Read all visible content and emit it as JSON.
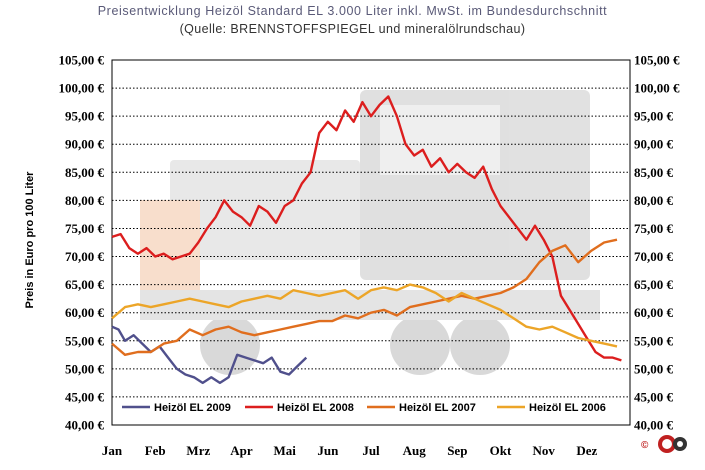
{
  "chart_data": {
    "type": "line",
    "title": "Preisentwicklung Heizöl Standard EL 3.000 Liter inkl. MwSt. im Bundesdurchschnitt",
    "subtitle": "(Quelle: BRENNSTOFFSPIEGEL und mineralölrundschau)",
    "ylabel": "Preis in Euro pro 100 Liter",
    "xlabel": "",
    "ylim": [
      40,
      105
    ],
    "yticks": [
      "40,00 €",
      "45,00 €",
      "50,00 €",
      "55,00 €",
      "60,00 €",
      "65,00 €",
      "70,00 €",
      "75,00 €",
      "80,00 €",
      "85,00 €",
      "90,00 €",
      "95,00 €",
      "100,00 €",
      "105,00 €"
    ],
    "xlim": [
      0,
      12
    ],
    "categories": [
      "Jan",
      "Feb",
      "Mrz",
      "Apr",
      "Mai",
      "Jun",
      "Jul",
      "Aug",
      "Sep",
      "Okt",
      "Nov",
      "Dez"
    ],
    "grid": true,
    "legend_position": "bottom",
    "series": [
      {
        "name": "Heizöl EL 2009",
        "color": "#50508c",
        "x": [
          0.0,
          0.15,
          0.3,
          0.5,
          0.7,
          0.9,
          1.1,
          1.3,
          1.5,
          1.7,
          1.9,
          2.1,
          2.3,
          2.5,
          2.7,
          2.9,
          3.1,
          3.3,
          3.5,
          3.7,
          3.9,
          4.1,
          4.3,
          4.5
        ],
        "values": [
          57.5,
          57.0,
          55.0,
          56.0,
          54.5,
          53.0,
          54.0,
          52.0,
          50.0,
          49.0,
          48.5,
          47.5,
          48.5,
          47.5,
          48.5,
          52.5,
          52.0,
          51.5,
          51.0,
          52.0,
          49.5,
          49.0,
          50.5,
          52.0
        ]
      },
      {
        "name": "Heizöl EL 2008",
        "color": "#dc1e1e",
        "x": [
          0.0,
          0.2,
          0.4,
          0.6,
          0.8,
          1.0,
          1.2,
          1.4,
          1.6,
          1.8,
          2.0,
          2.2,
          2.4,
          2.6,
          2.8,
          3.0,
          3.2,
          3.4,
          3.6,
          3.8,
          4.0,
          4.2,
          4.4,
          4.6,
          4.8,
          5.0,
          5.2,
          5.4,
          5.6,
          5.8,
          6.0,
          6.2,
          6.4,
          6.6,
          6.8,
          7.0,
          7.2,
          7.4,
          7.6,
          7.8,
          8.0,
          8.2,
          8.4,
          8.6,
          8.8,
          9.0,
          9.2,
          9.4,
          9.6,
          9.8,
          10.0,
          10.2,
          10.4,
          10.6,
          10.8,
          11.0,
          11.2,
          11.4,
          11.6,
          11.8
        ],
        "values": [
          73.5,
          74.0,
          71.5,
          70.5,
          71.5,
          70.0,
          70.5,
          69.5,
          70.0,
          70.5,
          72.5,
          75.0,
          77.0,
          80.0,
          78.0,
          77.0,
          75.5,
          79.0,
          78.0,
          76.0,
          79.0,
          80.0,
          83.0,
          85.0,
          92.0,
          94.0,
          92.5,
          96.0,
          94.0,
          97.5,
          95.0,
          97.0,
          98.5,
          95.0,
          90.0,
          88.0,
          89.0,
          86.0,
          87.5,
          85.0,
          86.5,
          85.0,
          84.0,
          86.0,
          82.0,
          79.0,
          77.0,
          75.0,
          73.0,
          75.5,
          73.0,
          70.0,
          63.0,
          60.5,
          58.0,
          55.5,
          53.0,
          52.0,
          52.0,
          51.5
        ]
      },
      {
        "name": "Heizöl EL 2007",
        "color": "#e06e1e",
        "x": [
          0.0,
          0.3,
          0.6,
          0.9,
          1.2,
          1.5,
          1.8,
          2.1,
          2.4,
          2.7,
          3.0,
          3.3,
          3.6,
          3.9,
          4.2,
          4.5,
          4.8,
          5.1,
          5.4,
          5.7,
          6.0,
          6.3,
          6.6,
          6.9,
          7.2,
          7.5,
          7.8,
          8.1,
          8.4,
          8.7,
          9.0,
          9.3,
          9.6,
          9.9,
          10.2,
          10.5,
          10.8,
          11.1,
          11.4,
          11.7
        ],
        "values": [
          54.5,
          52.5,
          53.0,
          53.0,
          54.5,
          55.0,
          57.0,
          56.0,
          57.0,
          57.5,
          56.5,
          56.0,
          56.5,
          57.0,
          57.5,
          58.0,
          58.5,
          58.5,
          59.5,
          59.0,
          60.0,
          60.5,
          59.5,
          61.0,
          61.5,
          62.0,
          62.5,
          63.0,
          62.5,
          63.0,
          63.5,
          64.5,
          66.0,
          69.0,
          71.0,
          72.0,
          69.0,
          71.0,
          72.5,
          73.0
        ]
      },
      {
        "name": "Heizöl EL 2006",
        "color": "#eca528",
        "x": [
          0.0,
          0.3,
          0.6,
          0.9,
          1.2,
          1.5,
          1.8,
          2.1,
          2.4,
          2.7,
          3.0,
          3.3,
          3.6,
          3.9,
          4.2,
          4.5,
          4.8,
          5.1,
          5.4,
          5.7,
          6.0,
          6.3,
          6.6,
          6.9,
          7.2,
          7.5,
          7.8,
          8.1,
          8.4,
          8.7,
          9.0,
          9.3,
          9.6,
          9.9,
          10.2,
          10.5,
          10.8,
          11.1,
          11.4,
          11.7
        ],
        "values": [
          59.0,
          61.0,
          61.5,
          61.0,
          61.5,
          62.0,
          62.5,
          62.0,
          61.5,
          61.0,
          62.0,
          62.5,
          63.0,
          62.5,
          64.0,
          63.5,
          63.0,
          63.5,
          64.0,
          62.5,
          64.0,
          64.5,
          64.0,
          65.0,
          64.5,
          63.5,
          62.0,
          63.5,
          62.5,
          61.5,
          60.5,
          59.0,
          57.5,
          57.0,
          57.5,
          56.5,
          55.5,
          55.0,
          54.5,
          54.0
        ]
      }
    ]
  }
}
